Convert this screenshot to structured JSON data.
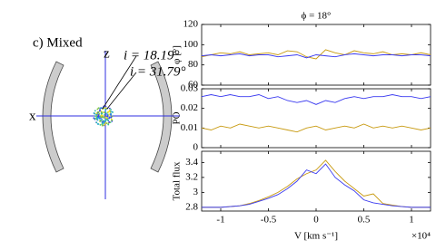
{
  "diagram": {
    "panel_label": "c) Mixed",
    "z_label": "z",
    "x_label": "x",
    "angle_labels": [
      "i = 18.19°",
      "i = 31.79°"
    ]
  },
  "chart_data": [
    {
      "type": "line",
      "title": "ϕ = 18°",
      "ylabel": "φ [°]",
      "ylim": [
        60,
        120
      ],
      "yticks": [
        60,
        80,
        100,
        120
      ],
      "xlim": [
        -12000,
        12000
      ],
      "x": [
        -12000,
        -11000,
        -10000,
        -9000,
        -8000,
        -7000,
        -6000,
        -5000,
        -4000,
        -3000,
        -2000,
        -1000,
        0,
        1000,
        2000,
        3000,
        4000,
        5000,
        6000,
        7000,
        8000,
        9000,
        10000,
        11000,
        12000
      ],
      "series": [
        {
          "color": "#c89a10",
          "values": [
            88,
            90,
            92,
            91,
            93,
            90,
            91,
            92,
            90,
            94,
            93,
            88,
            86,
            95,
            92,
            90,
            94,
            92,
            91,
            93,
            90,
            91,
            90,
            92,
            90
          ]
        },
        {
          "color": "#3a3af0",
          "values": [
            89,
            90,
            89,
            90,
            91,
            89,
            90,
            90,
            88,
            89,
            90,
            87,
            90,
            89,
            88,
            90,
            91,
            90,
            89,
            90,
            90,
            89,
            90,
            90,
            89
          ]
        }
      ]
    },
    {
      "type": "line",
      "ylabel": "PO",
      "ylim": [
        0,
        0.03
      ],
      "yticks": [
        0,
        0.01,
        0.02,
        0.03
      ],
      "xlim": [
        -12000,
        12000
      ],
      "x": [
        -12000,
        -11000,
        -10000,
        -9000,
        -8000,
        -7000,
        -6000,
        -5000,
        -4000,
        -3000,
        -2000,
        -1000,
        0,
        1000,
        2000,
        3000,
        4000,
        5000,
        6000,
        7000,
        8000,
        9000,
        10000,
        11000,
        12000
      ],
      "series": [
        {
          "color": "#c89a10",
          "values": [
            0.01,
            0.009,
            0.011,
            0.01,
            0.012,
            0.011,
            0.01,
            0.011,
            0.01,
            0.009,
            0.008,
            0.01,
            0.011,
            0.009,
            0.01,
            0.011,
            0.01,
            0.012,
            0.01,
            0.011,
            0.01,
            0.011,
            0.01,
            0.009,
            0.01
          ]
        },
        {
          "color": "#3a3af0",
          "values": [
            0.026,
            0.027,
            0.026,
            0.027,
            0.026,
            0.026,
            0.027,
            0.025,
            0.026,
            0.024,
            0.023,
            0.024,
            0.022,
            0.024,
            0.023,
            0.025,
            0.026,
            0.025,
            0.026,
            0.026,
            0.027,
            0.026,
            0.026,
            0.025,
            0.026
          ]
        }
      ]
    },
    {
      "type": "line",
      "ylabel": "Total flux",
      "ylim": [
        2.75,
        3.55
      ],
      "yticks": [
        2.8,
        3,
        3.2,
        3.4
      ],
      "xlim": [
        -12000,
        12000
      ],
      "xlabel": "V [km s⁻¹]",
      "x_multiplier": "×10⁴",
      "xticks": [
        {
          "value": -10000,
          "label": "-1"
        },
        {
          "value": -5000,
          "label": "-0.5"
        },
        {
          "value": 0,
          "label": "0"
        },
        {
          "value": 5000,
          "label": "0.5"
        },
        {
          "value": 10000,
          "label": "1"
        }
      ],
      "x": [
        -12000,
        -11000,
        -10000,
        -9000,
        -8000,
        -7000,
        -6000,
        -5000,
        -4000,
        -3000,
        -2000,
        -1000,
        0,
        1000,
        2000,
        3000,
        4000,
        5000,
        6000,
        7000,
        8000,
        9000,
        10000,
        11000,
        12000
      ],
      "series": [
        {
          "color": "#c89a10",
          "values": [
            2.8,
            2.8,
            2.8,
            2.81,
            2.82,
            2.85,
            2.89,
            2.94,
            3.0,
            3.08,
            3.18,
            3.25,
            3.3,
            3.43,
            3.28,
            3.15,
            3.05,
            2.95,
            2.98,
            2.85,
            2.83,
            2.81,
            2.8,
            2.8,
            2.8
          ]
        },
        {
          "color": "#3a3af0",
          "values": [
            2.8,
            2.8,
            2.8,
            2.81,
            2.82,
            2.84,
            2.88,
            2.92,
            2.97,
            3.05,
            3.15,
            3.3,
            3.25,
            3.38,
            3.2,
            3.1,
            3.02,
            2.9,
            2.86,
            2.84,
            2.82,
            2.81,
            2.8,
            2.8,
            2.8
          ]
        }
      ]
    }
  ]
}
